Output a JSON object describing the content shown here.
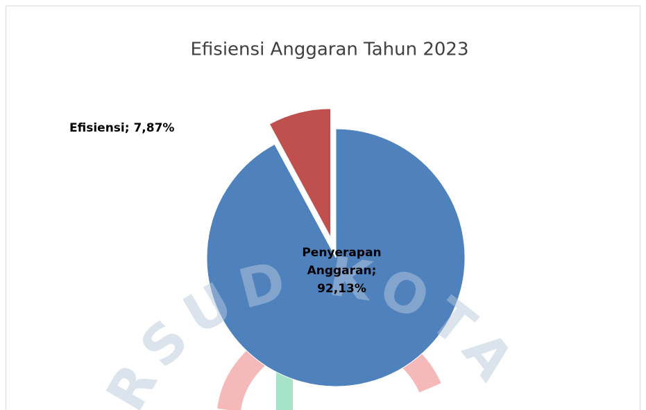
{
  "chart_data": {
    "type": "pie",
    "title": "Efisiensi Anggaran Tahun 2023",
    "categories": [
      "Penyerapan Anggaran",
      "Efisiensi"
    ],
    "values": [
      92.13,
      7.87
    ],
    "value_labels": [
      "Penyerapan Anggaran; 92,13%",
      "Efisiensi; 7,87%"
    ],
    "colors": [
      "#4f81bd",
      "#c0504d"
    ]
  },
  "watermark": "RSUD KOTA TANGERANG"
}
